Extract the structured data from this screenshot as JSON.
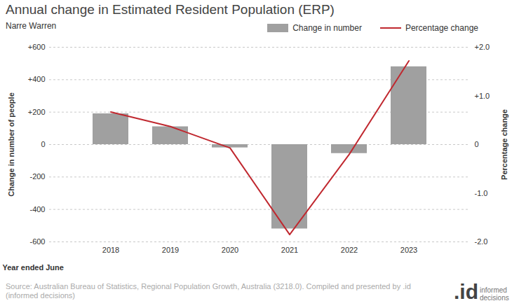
{
  "chart_data": {
    "type": "bar",
    "title": "Annual change in Estimated Resident Population (ERP)",
    "subtitle": "Narre Warren",
    "x_label": "Year ended June",
    "y_label": "Change in number of people",
    "y2_label": "Percentage change",
    "categories": [
      "2018",
      "2019",
      "2020",
      "2021",
      "2022",
      "2023"
    ],
    "series": [
      {
        "name": "Change in number",
        "type": "bar",
        "color": "#a0a0a0",
        "values": [
          190,
          110,
          -20,
          -520,
          -55,
          480
        ]
      },
      {
        "name": "Percentage change",
        "type": "line",
        "color": "#c0282f",
        "axis": "y2",
        "values": [
          0.67,
          0.37,
          -0.07,
          -1.85,
          -0.2,
          1.72
        ]
      }
    ],
    "ylim": [
      -600,
      600
    ],
    "yticks": [
      -600,
      -400,
      -200,
      0,
      {
        "value": 200,
        "label": "+200"
      },
      {
        "value": 400,
        "label": "+400"
      },
      {
        "value": 600,
        "label": "+600"
      }
    ],
    "y2lim": [
      -2,
      2
    ],
    "y2ticks": [
      {
        "value": -2,
        "label": "-2.0"
      },
      {
        "value": -1,
        "label": "-1.0"
      },
      0,
      {
        "value": 1,
        "label": "+1.0"
      },
      {
        "value": 2,
        "label": "+2.0"
      }
    ],
    "grid": true,
    "legend": "top-right",
    "caption": "Source: Australian Bureau of Statistics, Regional Population Growth, Australia (3218.0). Compiled and presented by .id (informed decisions)",
    "logo": {
      "mark": ".id",
      "text": "informed decisions"
    }
  }
}
